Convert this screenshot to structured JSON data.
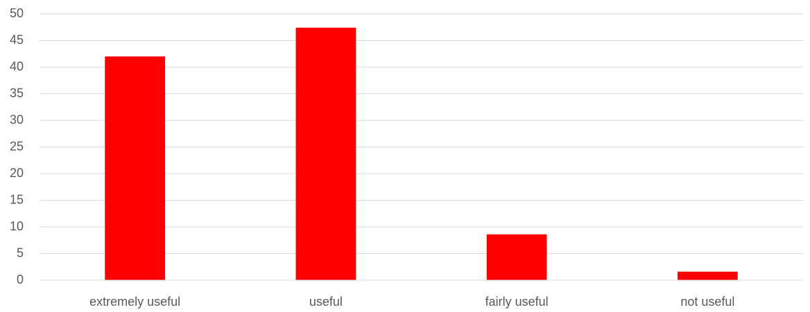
{
  "chart_data": {
    "type": "bar",
    "categories": [
      "extremely useful",
      "useful",
      "fairly useful",
      "not useful"
    ],
    "values": [
      42,
      47.4,
      8.6,
      1.6
    ],
    "ylim": [
      0,
      50
    ],
    "yticks": [
      0,
      5,
      10,
      15,
      20,
      25,
      30,
      35,
      40,
      45,
      50
    ],
    "grid": true,
    "bar_color": "#ff0000",
    "gridline_color": "#d9d9d9",
    "label_color": "#595959"
  }
}
